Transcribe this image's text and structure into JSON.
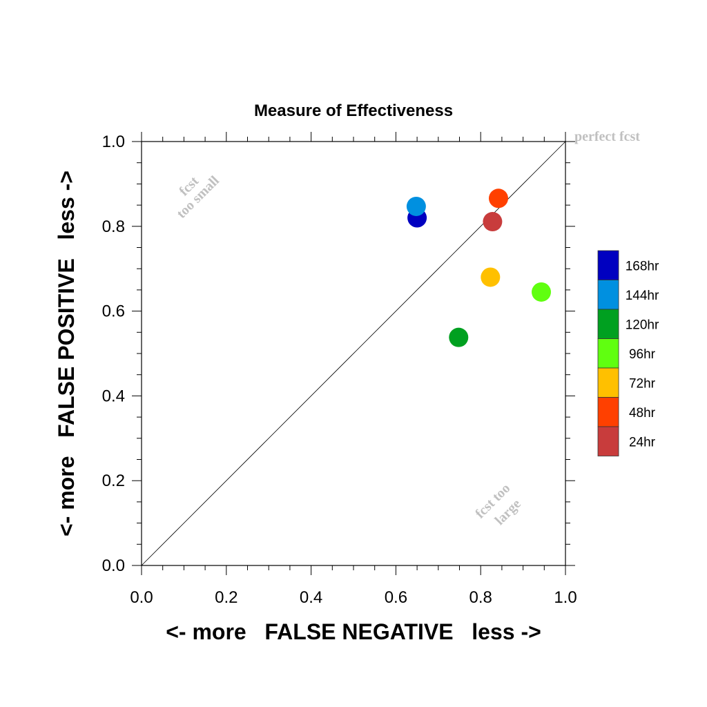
{
  "chart_data": {
    "type": "scatter",
    "title": "Measure of Effectiveness",
    "xlabel": "<- more   FALSE NEGATIVE   less ->",
    "ylabel": "<- more   FALSE POSITIVE   less ->",
    "xlim": [
      0.0,
      1.0
    ],
    "ylim": [
      0.0,
      1.0
    ],
    "xticks": [
      "0.0",
      "0.2",
      "0.4",
      "0.6",
      "0.8",
      "1.0"
    ],
    "yticks": [
      "0.0",
      "0.2",
      "0.4",
      "0.6",
      "0.8",
      "1.0"
    ],
    "grid": false,
    "diagonal_reference_line": true,
    "annotations": {
      "top_left": [
        "fcst",
        "too small"
      ],
      "bottom_right": [
        "fcst too",
        "large"
      ],
      "top_right": "perfect fcst"
    },
    "series": [
      {
        "name": "168hr",
        "color": "#0000c0",
        "x": 0.65,
        "y": 0.82
      },
      {
        "name": "144hr",
        "color": "#0090e0",
        "x": 0.648,
        "y": 0.847
      },
      {
        "name": "120hr",
        "color": "#00a020",
        "x": 0.748,
        "y": 0.538
      },
      {
        "name": "96hr",
        "color": "#60ff10",
        "x": 0.943,
        "y": 0.645
      },
      {
        "name": "72hr",
        "color": "#ffc000",
        "x": 0.823,
        "y": 0.68
      },
      {
        "name": "48hr",
        "color": "#ff4000",
        "x": 0.842,
        "y": 0.866
      },
      {
        "name": "24hr",
        "color": "#c83c3c",
        "x": 0.828,
        "y": 0.811
      }
    ],
    "legend_placement": "right"
  }
}
